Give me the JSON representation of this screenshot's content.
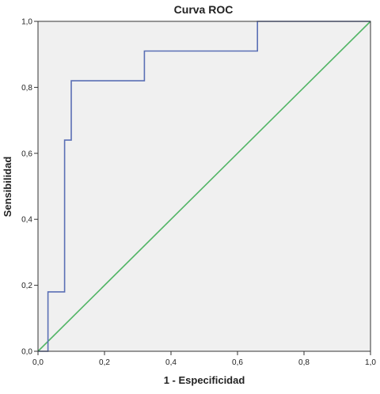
{
  "chart_data": {
    "type": "line",
    "title": "Curva  ROC",
    "xlabel": "1 - Especificidad",
    "ylabel": "Sensibilidad",
    "xlim": [
      0,
      1
    ],
    "ylim": [
      0,
      1
    ],
    "xticks": [
      "0,0",
      "0,2",
      "0,4",
      "0,6",
      "0,8",
      "1,0"
    ],
    "yticks": [
      "0,0",
      "0,2",
      "0,4",
      "0,6",
      "0,8",
      "1,0"
    ],
    "grid": false,
    "series": [
      {
        "x": [
          0.0,
          0.03,
          0.03,
          0.08,
          0.08,
          0.1,
          0.1,
          0.32,
          0.32,
          0.66,
          0.66,
          1.0
        ],
        "y": [
          0.0,
          0.0,
          0.18,
          0.18,
          0.64,
          0.64,
          0.82,
          0.82,
          0.91,
          0.91,
          1.0,
          1.0
        ],
        "color": "#5a6fb5"
      },
      {
        "x": [
          0.0,
          1.0
        ],
        "y": [
          0.0,
          1.0
        ],
        "color": "#52b566"
      }
    ],
    "colors": {
      "plot_background": "#f0f0f0",
      "frame": "#333333"
    }
  }
}
